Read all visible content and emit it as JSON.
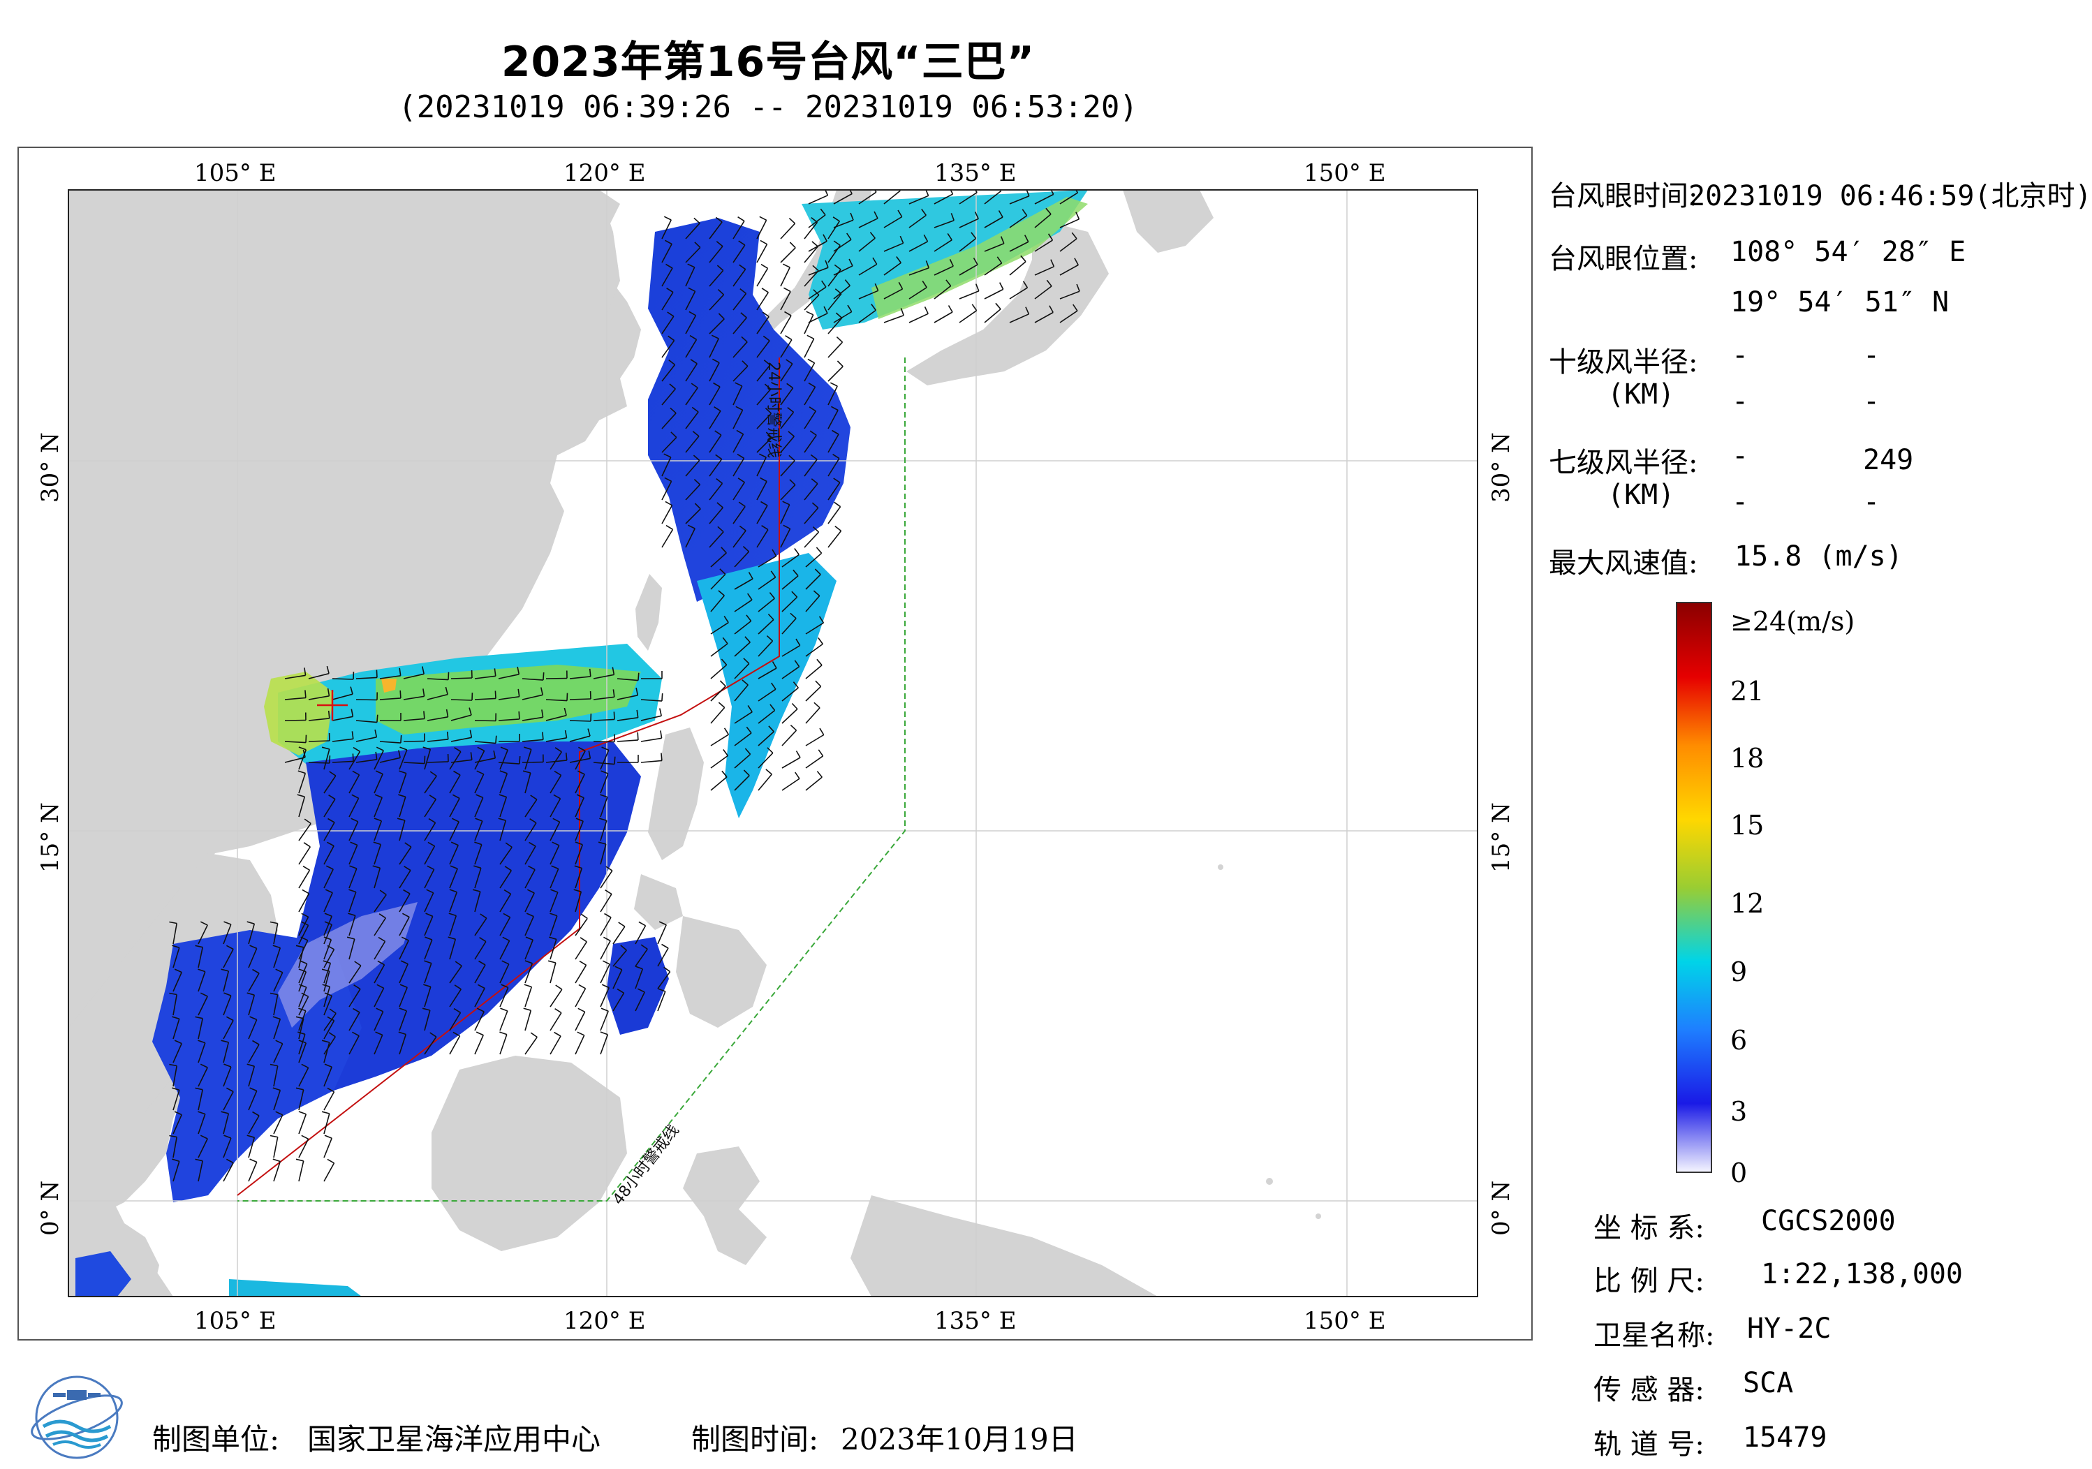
{
  "header": {
    "title": "2023年第16号台风“三巴”",
    "subtitle": "(20231019 06:39:26 -- 20231019 06:53:20)"
  },
  "map": {
    "lon_ticks_top": [
      "105° E",
      "120° E",
      "135° E",
      "150° E"
    ],
    "lon_ticks_bottom": [
      "105° E",
      "120° E",
      "135° E",
      "150° E"
    ],
    "lat_ticks_left": [
      "30° N",
      "15° N",
      "0° N"
    ],
    "lat_ticks_right": [
      "30° N",
      "15° N",
      "0° N"
    ],
    "line_labels": {
      "warning_24h": "24小时警戒线",
      "warning_48h": "48小时警戒线"
    },
    "colors": {
      "land": "#d3d3d3",
      "ocean": "#ffffff",
      "warning_24h": "#cc0000",
      "warning_48h": "#22aa22"
    },
    "typhoon_eye": {
      "lon": 108.91,
      "lat": 19.91
    }
  },
  "info": {
    "eye_time_label": "台风眼时间:",
    "eye_time_value": "20231019 06:46:59(北京时)",
    "eye_pos_label": "台风眼位置:",
    "eye_lon": "108° 54′ 28″ E",
    "eye_lat": "19° 54′ 51″ N",
    "r10_label": "十级风半径:",
    "r10_unit": "(KM)",
    "r10_values": [
      "-",
      "-",
      "-",
      "-"
    ],
    "r7_label": "七级风半径:",
    "r7_unit": "(KM)",
    "r7_values": [
      "-",
      "249",
      "-",
      "-"
    ],
    "max_wind_label": "最大风速值:",
    "max_wind_value": "15.8 (m/s)"
  },
  "colorbar": {
    "labels": [
      "≥24(m/s)",
      "21",
      "18",
      "15",
      "12",
      "9",
      "6",
      "3",
      "0"
    ],
    "stops": [
      "#8b0000",
      "#e60000",
      "#ff8c00",
      "#ffd700",
      "#9acd32",
      "#00d4e8",
      "#1e7fff",
      "#1a1ae6",
      "#f4f4ff"
    ]
  },
  "metadata": {
    "crs_label": "坐 标 系:",
    "crs_value": "CGCS2000",
    "scale_label": "比 例 尺:",
    "scale_value": "1:22,138,000",
    "satellite_label": "卫星名称:",
    "satellite_value": "HY-2C",
    "sensor_label": "传 感 器:",
    "sensor_value": "SCA",
    "orbit_label": "轨 道 号:",
    "orbit_value": "15479"
  },
  "footer": {
    "maker_label": "制图单位:",
    "maker_value": "国家卫星海洋应用中心",
    "date_label": "制图时间:",
    "date_value": "2023年10月19日"
  }
}
